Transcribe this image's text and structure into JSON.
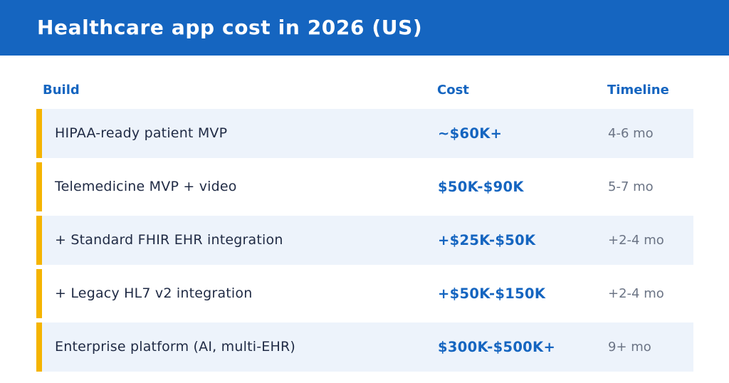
{
  "title": "Healthcare app cost in 2026 (US)",
  "columns": {
    "build": "Build",
    "cost": "Cost",
    "timeline": "Timeline"
  },
  "rows": [
    {
      "build": "HIPAA-ready patient MVP",
      "cost": "~$60K+",
      "timeline": "4-6 mo"
    },
    {
      "build": "Telemedicine MVP + video",
      "cost": "$50K-$90K",
      "timeline": "5-7 mo"
    },
    {
      "build": "+ Standard FHIR EHR integration",
      "cost": "+$25K-$50K",
      "timeline": "+2-4 mo"
    },
    {
      "build": "+ Legacy HL7 v2 integration",
      "cost": "+$50K-$150K",
      "timeline": "+2-4 mo"
    },
    {
      "build": "Enterprise platform (AI, multi-EHR)",
      "cost": "$300K-$500K+",
      "timeline": "9+ mo"
    }
  ],
  "colors": {
    "header_background": "#1565c0",
    "accent_bar": "#f5b400",
    "row_shade": "#edf3fb",
    "cost_text": "#1565c0"
  }
}
